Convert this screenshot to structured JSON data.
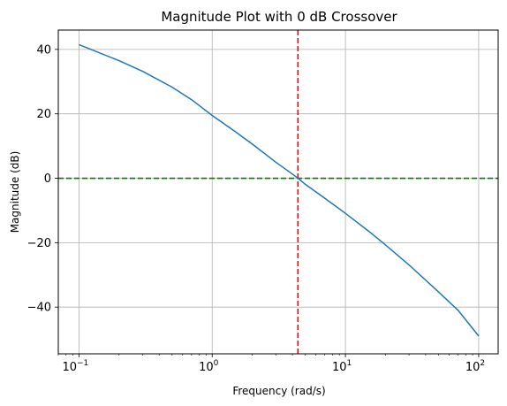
{
  "chart_data": {
    "type": "line",
    "title": "Magnitude Plot with 0 dB Crossover",
    "xlabel": "Frequency (rad/s)",
    "ylabel": "Magnitude (dB)",
    "xscale": "log",
    "xlim": [
      0.07,
      140
    ],
    "ylim": [
      -54.5,
      46
    ],
    "grid": true,
    "x_ticks": [
      {
        "value": 0.1,
        "base": "10",
        "exp": "−1"
      },
      {
        "value": 1,
        "base": "10",
        "exp": "0"
      },
      {
        "value": 10,
        "base": "10",
        "exp": "1"
      },
      {
        "value": 100,
        "base": "10",
        "exp": "2"
      }
    ],
    "y_ticks": [
      {
        "value": 40,
        "label": "40"
      },
      {
        "value": 20,
        "label": "20"
      },
      {
        "value": 0,
        "label": "0"
      },
      {
        "value": -20,
        "label": "−20"
      },
      {
        "value": -40,
        "label": "−40"
      }
    ],
    "series": [
      {
        "color": "#1f77b4",
        "style": "solid",
        "x": [
          0.1,
          0.2,
          0.3,
          0.5,
          0.7,
          1,
          1.5,
          2,
          3,
          4,
          4.4,
          5,
          7,
          10,
          15,
          20,
          30,
          50,
          70,
          100
        ],
        "y": [
          41.5,
          36.5,
          33.2,
          28.3,
          24.4,
          19.5,
          14.4,
          10.6,
          5.0,
          1.3,
          0.0,
          -1.9,
          -6.2,
          -10.9,
          -16.5,
          -20.7,
          -26.9,
          -35.3,
          -41.0,
          -49.0
        ]
      }
    ],
    "reference_lines": [
      {
        "orientation": "vertical",
        "value": 4.4,
        "color": "#ff0000",
        "style": "dashed"
      },
      {
        "orientation": "horizontal",
        "value": 0,
        "color": "#008000",
        "style": "dashed"
      }
    ]
  }
}
